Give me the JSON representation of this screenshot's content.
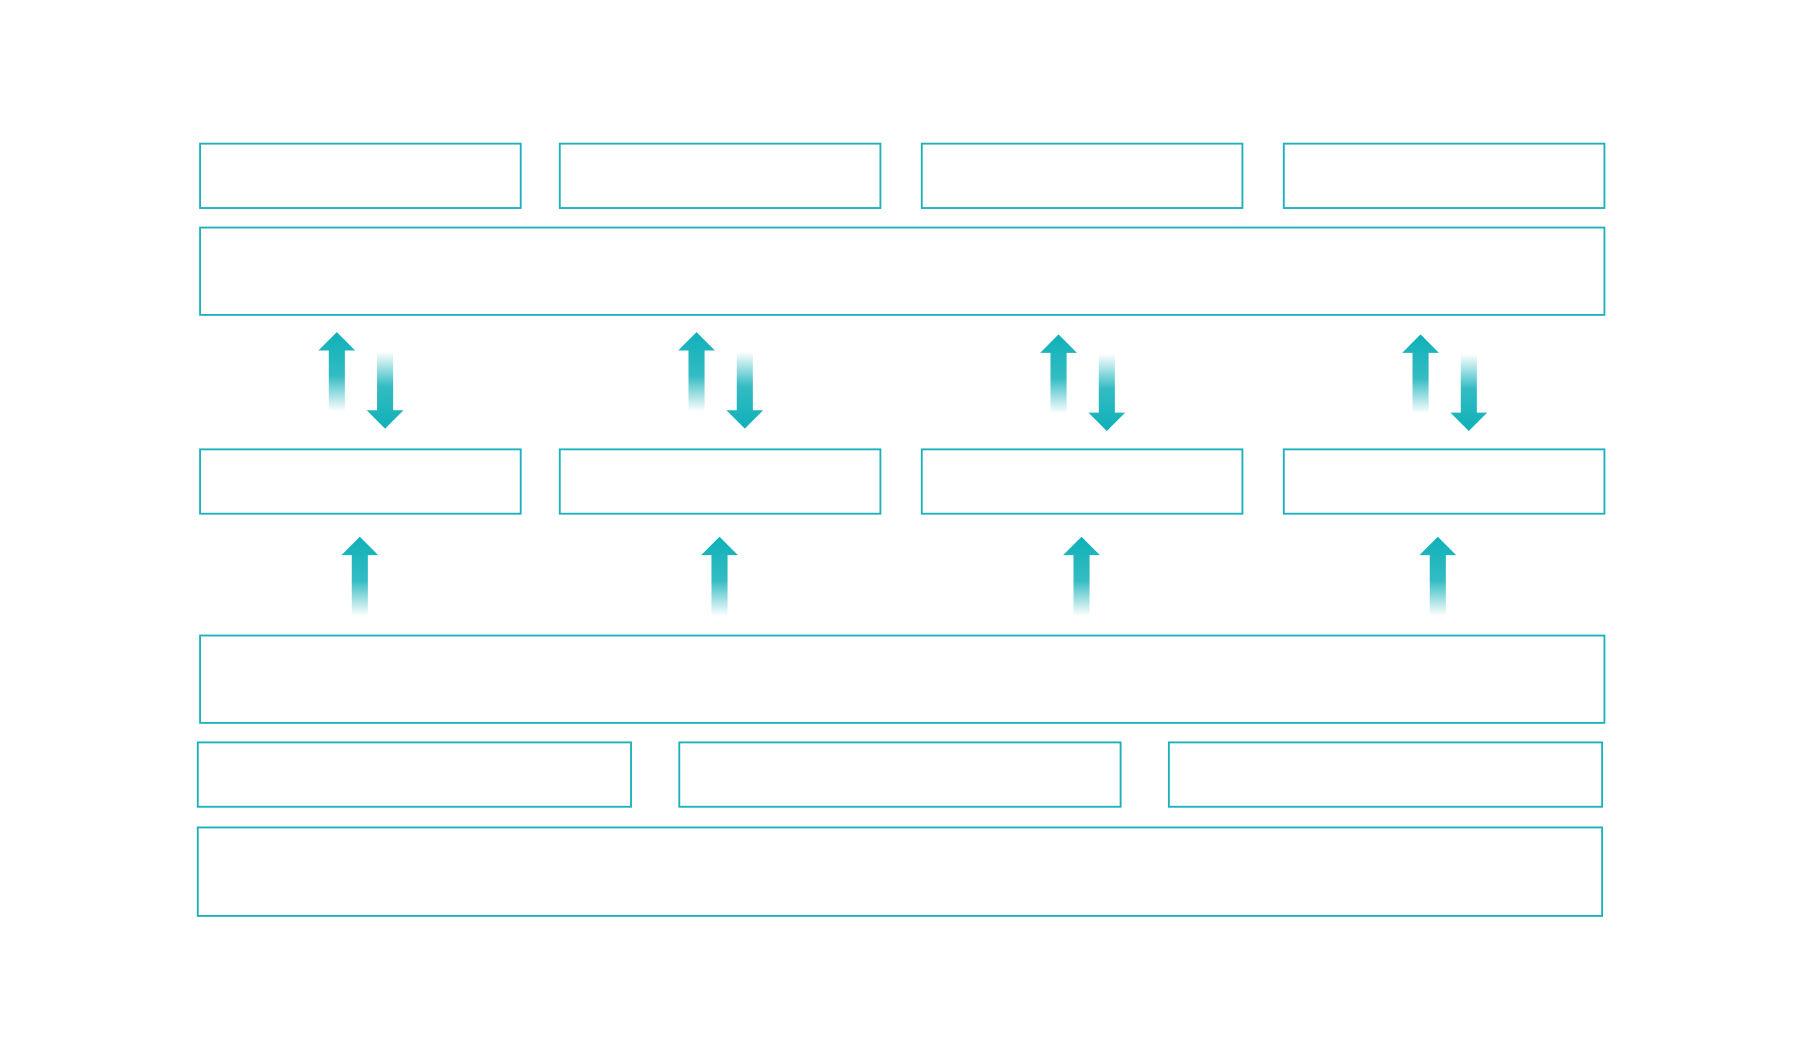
{
  "diagram": {
    "colors": {
      "box_stroke": "#1ab0bc",
      "arrow_fill": "#0fb0b8",
      "background": "#ffffff"
    },
    "boxes": {
      "top_row": [
        "",
        "",
        "",
        ""
      ],
      "upper_band": "",
      "middle_row": [
        "",
        "",
        "",
        ""
      ],
      "lower_band": "",
      "bottom_row": [
        "",
        "",
        ""
      ],
      "base_band": ""
    },
    "arrows": {
      "bidirectional_pairs": 4,
      "upward_single": 4
    }
  }
}
